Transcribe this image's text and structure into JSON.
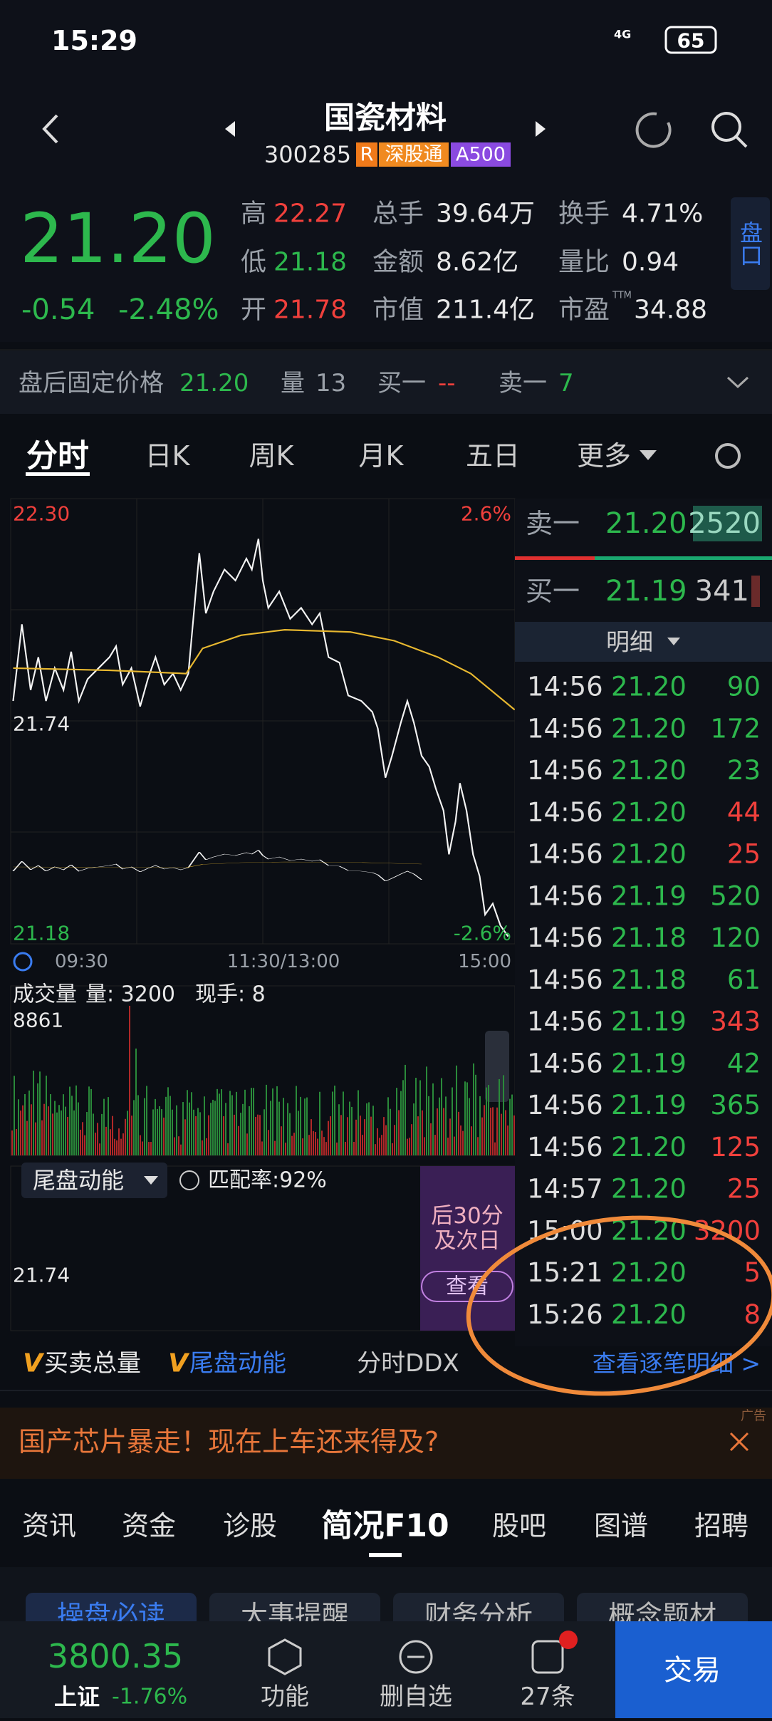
{
  "status": {
    "time": "15:29",
    "network": "4G",
    "battery": "65"
  },
  "header": {
    "title": "国瓷材料",
    "code": "300285",
    "tags": [
      "R",
      "深股通",
      "A500"
    ]
  },
  "quote": {
    "price": "21.20",
    "change": "-0.54",
    "change_pct": "-2.48%",
    "stats": [
      [
        {
          "label": "高",
          "value": "22.27"
        },
        {
          "label": "总手",
          "value": "39.64万"
        },
        {
          "label": "换手",
          "value": "4.71%"
        }
      ],
      [
        {
          "label": "低",
          "value": "21.18"
        },
        {
          "label": "金额",
          "value": "8.62亿"
        },
        {
          "label": "量比",
          "value": "0.94"
        }
      ],
      [
        {
          "label": "开",
          "value": "21.78"
        },
        {
          "label": "市值",
          "value": "211.4亿"
        },
        {
          "label": "市盈",
          "sup": "TTM",
          "value": "34.88"
        }
      ]
    ],
    "side_button": "盘口"
  },
  "after_hours": {
    "label": "盘后固定价格",
    "price": "21.20",
    "vol_label": "量",
    "vol": "13",
    "bid_label": "买一",
    "bid": "--",
    "ask_label": "卖一",
    "ask": "7"
  },
  "tabs": [
    "分时",
    "日K",
    "周K",
    "月K",
    "五日",
    "更多"
  ],
  "chart": {
    "y_top": "22.30",
    "y_mid": "21.74",
    "y_bottom": "21.18",
    "pct_top": "2.6%",
    "pct_bottom": "-2.6%",
    "times": [
      "09:30",
      "11:30/13:00",
      "15:00"
    ]
  },
  "volume": {
    "label": "成交量",
    "qty": "量: 3200",
    "hand": "现手: 8",
    "max": "8861"
  },
  "indicator": {
    "name": "尾盘动能",
    "match": "匹配率:92%",
    "mid": "21.74",
    "side_lines": [
      "后30分",
      "及次日"
    ],
    "button": "查看"
  },
  "orderbook": {
    "ask": {
      "label": "卖一",
      "price": "21.20",
      "qty": "2520"
    },
    "bid": {
      "label": "买一",
      "price": "21.19",
      "qty": "341"
    },
    "detail_label": "明细"
  },
  "trades": [
    {
      "time": "14:56",
      "price": "21.20",
      "qty": "90",
      "color": "#2db84d"
    },
    {
      "time": "14:56",
      "price": "21.20",
      "qty": "172",
      "color": "#2db84d"
    },
    {
      "time": "14:56",
      "price": "21.20",
      "qty": "23",
      "color": "#2db84d"
    },
    {
      "time": "14:56",
      "price": "21.20",
      "qty": "44",
      "color": "#f0403c"
    },
    {
      "time": "14:56",
      "price": "21.20",
      "qty": "25",
      "color": "#f0403c"
    },
    {
      "time": "14:56",
      "price": "21.19",
      "qty": "520",
      "color": "#2db84d"
    },
    {
      "time": "14:56",
      "price": "21.18",
      "qty": "120",
      "color": "#2db84d"
    },
    {
      "time": "14:56",
      "price": "21.18",
      "qty": "61",
      "color": "#2db84d"
    },
    {
      "time": "14:56",
      "price": "21.19",
      "qty": "343",
      "color": "#f0403c"
    },
    {
      "time": "14:56",
      "price": "21.19",
      "qty": "42",
      "color": "#2db84d"
    },
    {
      "time": "14:56",
      "price": "21.19",
      "qty": "365",
      "color": "#2db84d"
    },
    {
      "time": "14:56",
      "price": "21.20",
      "qty": "125",
      "color": "#f0403c"
    },
    {
      "time": "14:57",
      "price": "21.20",
      "qty": "25",
      "color": "#f0403c"
    },
    {
      "time": "15:00",
      "price": "21.20",
      "qty": "3200",
      "color": "#f0403c"
    },
    {
      "time": "15:21",
      "price": "21.20",
      "qty": "5",
      "color": "#f0403c"
    },
    {
      "time": "15:26",
      "price": "21.20",
      "qty": "8",
      "color": "#f0403c"
    }
  ],
  "indicator_tabs": [
    "买卖总量",
    "尾盘动能",
    "分时DDX"
  ],
  "detail_link": "查看逐笔明细 >",
  "ad": {
    "text": "国产芯片暴走！现在上车还来得及?",
    "tag": "广告"
  },
  "f10_tabs": [
    "资讯",
    "资金",
    "诊股",
    "简况F10",
    "股吧",
    "图谱",
    "招聘"
  ],
  "sub_tabs": [
    "操盘必读",
    "大事提醒",
    "财务分析",
    "概念题材"
  ],
  "bottom": {
    "index_value": "3800.35",
    "index_name": "上证",
    "index_change": "-1.76%",
    "items": [
      "功能",
      "删自选",
      "27条"
    ],
    "trade": "交易"
  }
}
